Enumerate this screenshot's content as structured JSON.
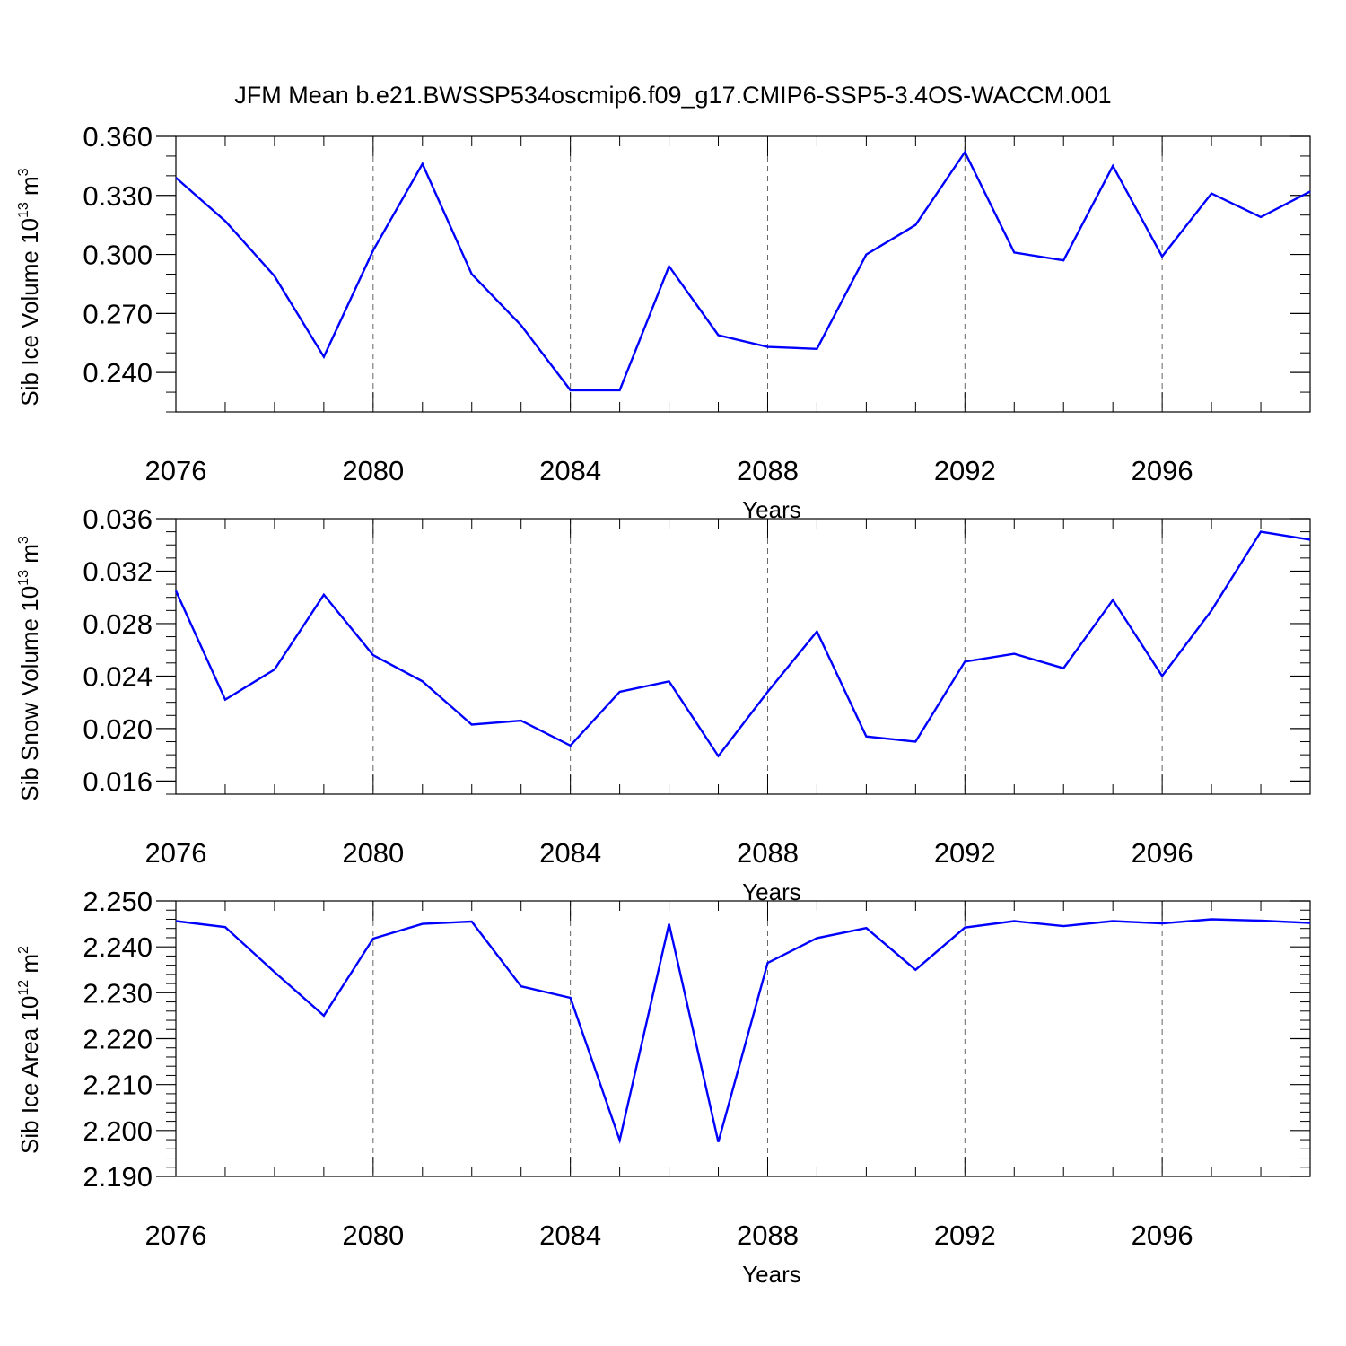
{
  "title": "JFM Mean b.e21.BWSSP534oscmip6.f09_g17.CMIP6-SSP5-3.4OS-WACCM.001",
  "chart_data": [
    {
      "type": "line",
      "ylabel": {
        "prefix": "Sib Ice Volume 10",
        "exp": "13",
        "unit": " m",
        "unit_exp": "3"
      },
      "xlabel": "Years",
      "xlim": [
        2076,
        2099
      ],
      "ylim": [
        0.22,
        0.36
      ],
      "yticks": [
        0.24,
        0.27,
        0.3,
        0.33,
        0.36
      ],
      "ytick_labels": [
        "0.240",
        "0.270",
        "0.300",
        "0.330",
        "0.360"
      ],
      "yminor": 0.01,
      "xticks": [
        2076,
        2080,
        2084,
        2088,
        2092,
        2096
      ],
      "xtick_labels": [
        "2076",
        "2080",
        "2084",
        "2088",
        "2092",
        "2096"
      ],
      "grid": "vertical dashed at major x ticks",
      "color": "#0000ff",
      "x": [
        2076,
        2077,
        2078,
        2079,
        2080,
        2081,
        2082,
        2083,
        2084,
        2085,
        2086,
        2087,
        2088,
        2089,
        2090,
        2091,
        2092,
        2093,
        2094,
        2095,
        2096,
        2097,
        2098,
        2099
      ],
      "y": [
        0.339,
        0.317,
        0.289,
        0.248,
        0.302,
        0.346,
        0.29,
        0.264,
        0.231,
        0.231,
        0.294,
        0.259,
        0.253,
        0.252,
        0.3,
        0.315,
        0.352,
        0.301,
        0.297,
        0.345,
        0.299,
        0.331,
        0.319,
        0.332
      ]
    },
    {
      "type": "line",
      "ylabel": {
        "prefix": "Sib Snow Volume 10",
        "exp": "13",
        "unit": " m",
        "unit_exp": "3"
      },
      "xlabel": "Years",
      "xlim": [
        2076,
        2099
      ],
      "ylim": [
        0.015,
        0.036
      ],
      "yticks": [
        0.016,
        0.02,
        0.024,
        0.028,
        0.032,
        0.036
      ],
      "ytick_labels": [
        "0.016",
        "0.020",
        "0.024",
        "0.028",
        "0.032",
        "0.036"
      ],
      "yminor": 0.001,
      "xticks": [
        2076,
        2080,
        2084,
        2088,
        2092,
        2096
      ],
      "xtick_labels": [
        "2076",
        "2080",
        "2084",
        "2088",
        "2092",
        "2096"
      ],
      "grid": "vertical dashed at major x ticks",
      "color": "#0000ff",
      "x": [
        2076,
        2077,
        2078,
        2079,
        2080,
        2081,
        2082,
        2083,
        2084,
        2085,
        2086,
        2087,
        2088,
        2089,
        2090,
        2091,
        2092,
        2093,
        2094,
        2095,
        2096,
        2097,
        2098,
        2099
      ],
      "y": [
        0.0305,
        0.0222,
        0.0245,
        0.0302,
        0.0256,
        0.0236,
        0.0203,
        0.0206,
        0.0187,
        0.0228,
        0.0236,
        0.0179,
        0.0228,
        0.0274,
        0.0194,
        0.019,
        0.0251,
        0.0257,
        0.0246,
        0.0298,
        0.024,
        0.029,
        0.035,
        0.0344
      ]
    },
    {
      "type": "line",
      "ylabel": {
        "prefix": "Sib Ice Area 10",
        "exp": "12",
        "unit": " m",
        "unit_exp": "2"
      },
      "xlabel": "Years",
      "xlim": [
        2076,
        2099
      ],
      "ylim": [
        2.19,
        2.25
      ],
      "yticks": [
        2.19,
        2.2,
        2.21,
        2.22,
        2.23,
        2.24,
        2.25
      ],
      "ytick_labels": [
        "2.190",
        "2.200",
        "2.210",
        "2.220",
        "2.230",
        "2.240",
        "2.250"
      ],
      "yminor": 0.002,
      "xticks": [
        2076,
        2080,
        2084,
        2088,
        2092,
        2096
      ],
      "xtick_labels": [
        "2076",
        "2080",
        "2084",
        "2088",
        "2092",
        "2096"
      ],
      "grid": "vertical dashed at major x ticks",
      "color": "#0000ff",
      "x": [
        2076,
        2077,
        2078,
        2079,
        2080,
        2081,
        2082,
        2083,
        2084,
        2085,
        2086,
        2087,
        2088,
        2089,
        2090,
        2091,
        2092,
        2093,
        2094,
        2095,
        2096,
        2097,
        2098,
        2099
      ],
      "y": [
        2.2456,
        2.2443,
        2.2345,
        2.225,
        2.2418,
        2.245,
        2.2455,
        2.2314,
        2.2289,
        2.1979,
        2.245,
        2.1975,
        2.2365,
        2.2419,
        2.2441,
        2.235,
        2.2442,
        2.2456,
        2.2445,
        2.2456,
        2.2451,
        2.246,
        2.2457,
        2.2452
      ]
    }
  ]
}
